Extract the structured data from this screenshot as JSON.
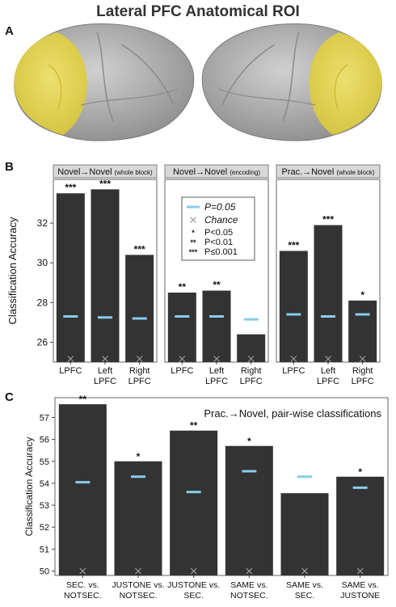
{
  "figure": {
    "title": "Lateral PFC Anatomical ROI",
    "panel_labels": [
      "A",
      "B",
      "C"
    ]
  },
  "colors": {
    "bar": "#333333",
    "threshold": "#87CEEB",
    "chance": "#9a9a9a",
    "roi": "#e6d84a",
    "brain": "#b5b5b5"
  },
  "legend": {
    "threshold_label": "P=0.05",
    "chance_label": "Chance",
    "sig_symbols": [
      "*",
      "**",
      "***"
    ],
    "sig_labels": [
      "P<0.05",
      "P<0.01",
      "P≤0.001"
    ]
  },
  "chart_data": [
    {
      "type": "bar",
      "panel": "B",
      "ylabel": "Classification Accuracy",
      "ylim": [
        25,
        34.2
      ],
      "yticks": [
        26,
        28,
        30,
        32
      ],
      "chance": 25,
      "categories": [
        "LPFC",
        "Left\nLPFC",
        "Right\nLPFC"
      ],
      "facets": [
        {
          "title": "Novel→Novel",
          "subtitle": "(whole block)",
          "values": [
            33.5,
            33.7,
            30.4
          ],
          "thresholds": [
            27.3,
            27.25,
            27.2
          ],
          "sig": [
            "***",
            "***",
            "***"
          ]
        },
        {
          "title": "Novel→Novel",
          "subtitle": "(encoding)",
          "values": [
            28.5,
            28.6,
            26.4
          ],
          "thresholds": [
            27.3,
            27.3,
            27.15
          ],
          "sig": [
            "**",
            "**",
            ""
          ]
        },
        {
          "title": "Prac.→Novel",
          "subtitle": "(whole block)",
          "values": [
            30.6,
            31.9,
            28.1
          ],
          "thresholds": [
            27.4,
            27.3,
            27.4
          ],
          "sig": [
            "***",
            "***",
            "*"
          ]
        }
      ]
    },
    {
      "type": "bar",
      "panel": "C",
      "title": "Prac.→Novel, pair-wise classifications",
      "ylabel": "Classification Accuracy",
      "ylim": [
        49.8,
        57.9
      ],
      "yticks": [
        50,
        51,
        52,
        53,
        54,
        55,
        56,
        57
      ],
      "chance": 50,
      "categories": [
        "SEC. vs.\nNOTSEC.",
        "JUSTONE vs.\nNOTSEC.",
        "JUSTONE vs.\nSEC.",
        "SAME vs.\nNOTSEC.",
        "SAME vs.\nSEC.",
        "SAME vs.\nJUSTONE"
      ],
      "values": [
        57.6,
        55.0,
        56.4,
        55.7,
        53.55,
        54.3
      ],
      "thresholds": [
        54.05,
        54.3,
        53.6,
        54.55,
        54.3,
        53.8
      ],
      "sig": [
        "**",
        "*",
        "**",
        "*",
        "",
        "*"
      ]
    }
  ]
}
